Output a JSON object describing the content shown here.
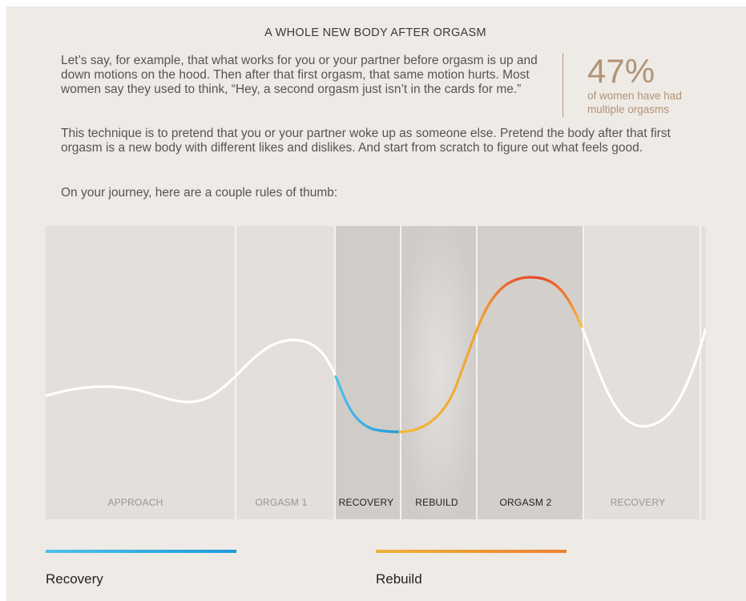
{
  "title": "A WHOLE NEW BODY AFTER ORGASM",
  "paragraphs": {
    "p1": "Let’s say, for example, that what works for you or your partner before orgasm is up and down motions on the hood. Then after that first orgasm, that same motion hurts. Most women say they used to think, “Hey, a second orgasm just isn’t in the cards for me.”",
    "p2": "This technique is to pretend that you or your partner woke up as someone else. Pretend the body after that first orgasm is a new body with different likes and dislikes. And start from scratch to figure out what feels good.",
    "p3": "On your journey, here are a couple rules of thumb:"
  },
  "stat": {
    "value": "47%",
    "caption": "of women have had multiple orgasms"
  },
  "phases": [
    {
      "label": "APPROACH",
      "highlight": false
    },
    {
      "label": "ORGASM 1",
      "highlight": false
    },
    {
      "label": "RECOVERY",
      "highlight": true
    },
    {
      "label": "REBUILD",
      "highlight": true
    },
    {
      "label": "ORGASM 2",
      "highlight": true
    },
    {
      "label": "RECOVERY",
      "highlight": false
    }
  ],
  "legend": {
    "recovery": "Recovery",
    "rebuild": "Rebuild"
  },
  "colors": {
    "background": "#eeeae6",
    "panel": "#e3dfdb",
    "panel_highlight": "#d0ccc8",
    "curve": "#ffffff",
    "recovery_start": "#4ec0ec",
    "recovery_end": "#1e9ad9",
    "rebuild_start": "#f0b23a",
    "rebuild_end": "#ec8030",
    "peak": "#e8452b",
    "stat": "#b29474"
  }
}
